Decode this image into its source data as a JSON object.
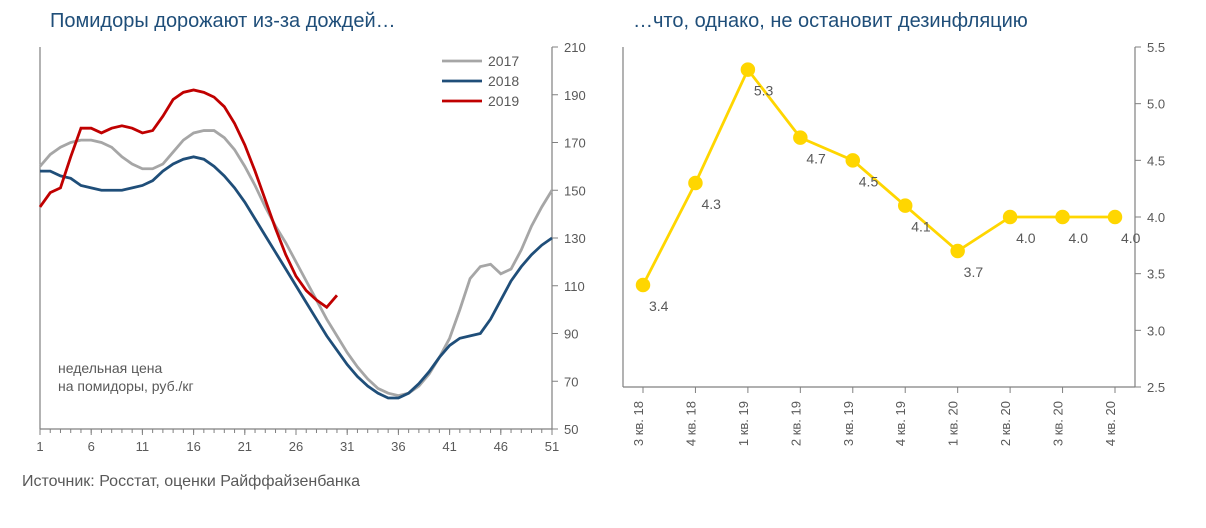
{
  "source_text": "Источник: Росстат, оценки Райффайзенбанка",
  "colors": {
    "title": "#1f4e79",
    "axis": "#808080",
    "text": "#595959",
    "background": "#ffffff"
  },
  "left_chart": {
    "type": "line",
    "title": "Помидоры дорожают из-за дождей…",
    "title_fontsize": 20,
    "annotation_lines": [
      "недельная цена",
      "на помидоры, руб./кг"
    ],
    "annotation_fontsize": 14,
    "xlim": [
      1,
      51
    ],
    "xticks": [
      1,
      6,
      11,
      16,
      21,
      26,
      31,
      36,
      41,
      46,
      51
    ],
    "ylim": [
      50,
      210
    ],
    "yticks": [
      50,
      70,
      90,
      110,
      130,
      150,
      170,
      190,
      210
    ],
    "ytick_side": "right",
    "legend_position": "top-right",
    "series": [
      {
        "label": "2017",
        "color": "#a6a6a6",
        "width": 2.8,
        "x": [
          1,
          2,
          3,
          4,
          5,
          6,
          7,
          8,
          9,
          10,
          11,
          12,
          13,
          14,
          15,
          16,
          17,
          18,
          19,
          20,
          21,
          22,
          23,
          24,
          25,
          26,
          27,
          28,
          29,
          30,
          31,
          32,
          33,
          34,
          35,
          36,
          37,
          38,
          39,
          40,
          41,
          42,
          43,
          44,
          45,
          46,
          47,
          48,
          49,
          50,
          51
        ],
        "y": [
          160,
          165,
          168,
          170,
          171,
          171,
          170,
          168,
          164,
          161,
          159,
          159,
          161,
          166,
          171,
          174,
          175,
          175,
          172,
          167,
          160,
          152,
          143,
          135,
          128,
          120,
          112,
          104,
          96,
          89,
          82,
          76,
          71,
          67,
          65,
          64,
          65,
          68,
          73,
          80,
          88,
          100,
          113,
          118,
          119,
          115,
          117,
          125,
          135,
          143,
          150
        ]
      },
      {
        "label": "2018",
        "color": "#1f4e79",
        "width": 2.8,
        "x": [
          1,
          2,
          3,
          4,
          5,
          6,
          7,
          8,
          9,
          10,
          11,
          12,
          13,
          14,
          15,
          16,
          17,
          18,
          19,
          20,
          21,
          22,
          23,
          24,
          25,
          26,
          27,
          28,
          29,
          30,
          31,
          32,
          33,
          34,
          35,
          36,
          37,
          38,
          39,
          40,
          41,
          42,
          43,
          44,
          45,
          46,
          47,
          48,
          49,
          50,
          51
        ],
        "y": [
          158,
          158,
          156,
          155,
          152,
          151,
          150,
          150,
          150,
          151,
          152,
          154,
          158,
          161,
          163,
          164,
          163,
          160,
          156,
          151,
          145,
          138,
          131,
          124,
          117,
          110,
          103,
          96,
          89,
          83,
          77,
          72,
          68,
          65,
          63,
          63,
          65,
          69,
          74,
          80,
          85,
          88,
          89,
          90,
          96,
          104,
          112,
          118,
          123,
          127,
          130
        ]
      },
      {
        "label": "2019",
        "color": "#c00000",
        "width": 2.8,
        "x": [
          1,
          2,
          3,
          4,
          5,
          6,
          7,
          8,
          9,
          10,
          11,
          12,
          13,
          14,
          15,
          16,
          17,
          18,
          19,
          20,
          21,
          22,
          23,
          24,
          25,
          26,
          27,
          28,
          29,
          30
        ],
        "y": [
          143,
          149,
          151,
          164,
          176,
          176,
          174,
          176,
          177,
          176,
          174,
          175,
          181,
          188,
          191,
          192,
          191,
          189,
          185,
          178,
          169,
          158,
          146,
          134,
          123,
          114,
          108,
          104,
          101,
          106
        ]
      }
    ]
  },
  "right_chart": {
    "type": "line-marker",
    "title": "…что, однако, не остановит дезинфляцию",
    "title_fontsize": 20,
    "xlim": [
      0,
      9
    ],
    "xticks": [
      "3 кв. 18",
      "4 кв. 18",
      "1 кв. 19",
      "2 кв. 19",
      "3 кв. 19",
      "4 кв. 19",
      "1 кв. 20",
      "2 кв. 20",
      "3 кв. 20",
      "4 кв. 20"
    ],
    "xtick_rotation": -90,
    "ylim": [
      2.5,
      5.5
    ],
    "yticks": [
      2.5,
      3.0,
      3.5,
      4.0,
      4.5,
      5.0,
      5.5
    ],
    "ytick_side": "right",
    "series": {
      "color": "#ffd600",
      "line_width": 3.5,
      "marker": "circle",
      "marker_size": 6,
      "marker_fill": "#ffd600",
      "marker_stroke": "#ffd600",
      "values": [
        3.4,
        4.3,
        5.3,
        4.7,
        4.5,
        4.1,
        3.7,
        4.0,
        4.0,
        4.0
      ],
      "value_labels": [
        "3.4",
        "4.3",
        "5.3",
        "4.7",
        "4.5",
        "4.1",
        "3.7",
        "4.0",
        "4.0",
        "4.0"
      ]
    }
  }
}
